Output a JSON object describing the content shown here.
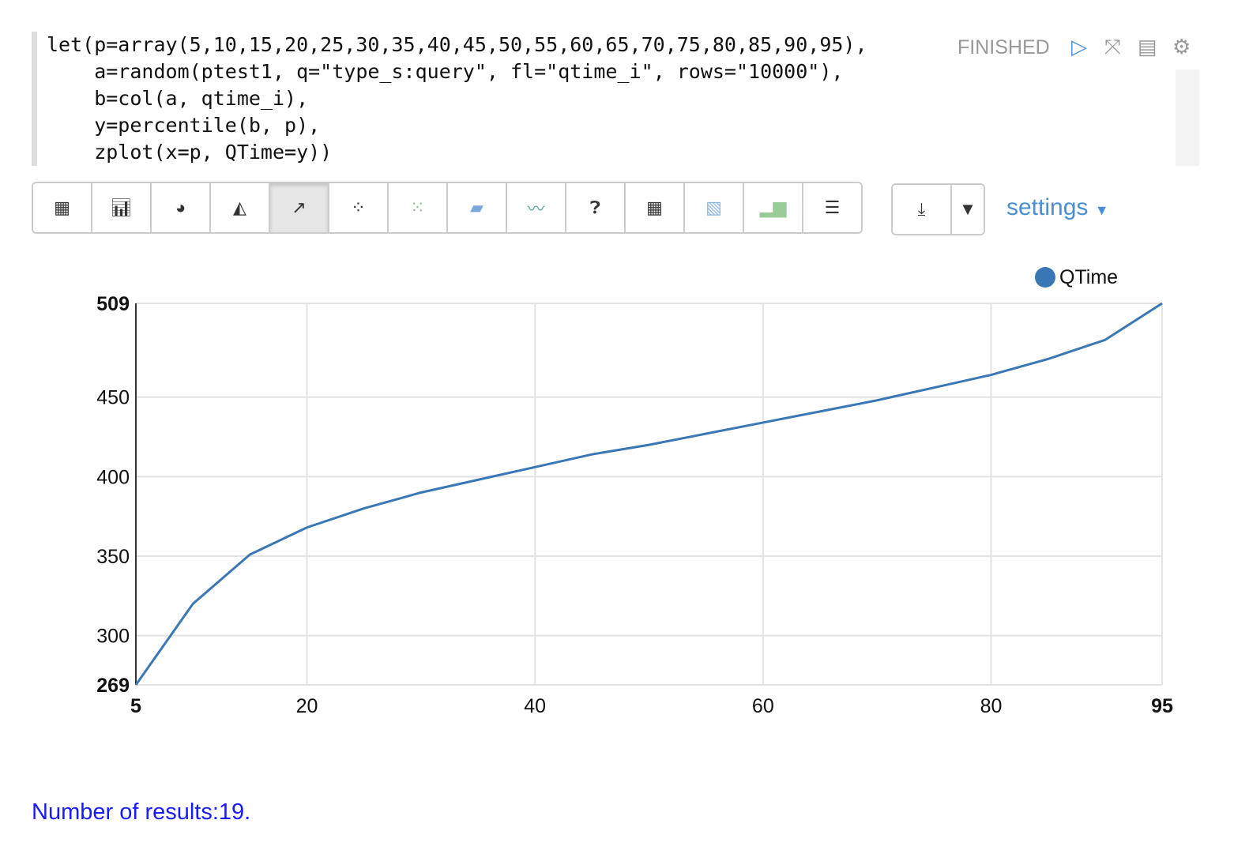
{
  "paragraph": {
    "code_lines": [
      "let(p=array(5,10,15,20,25,30,35,40,45,50,55,60,65,70,75,80,85,90,95),",
      "    a=random(ptest1, q=\"type_s:query\", fl=\"qtime_i\", rows=\"10000\"),",
      "    b=col(a, qtime_i),",
      "    y=percentile(b, p),",
      "    zplot(x=p, QTime=y))"
    ],
    "status": "FINISHED",
    "controls": [
      "run-icon",
      "collapse-icon",
      "book-icon",
      "gear-icon"
    ]
  },
  "toolbar": {
    "buttons": [
      "table-icon",
      "bar-chart-icon",
      "pie-chart-icon",
      "area-chart-icon",
      "line-chart-icon",
      "scatter-chart-icon",
      "bubble-chart-icon",
      "stacked-area-icon",
      "multi-line-icon",
      "help-icon",
      "grid-icon",
      "heatmap-icon",
      "column-chart-icon",
      "align-center-icon"
    ],
    "active": "line-chart-icon",
    "download": "download-icon",
    "settings_label": "settings"
  },
  "chart_data": {
    "type": "line",
    "x": [
      5,
      10,
      15,
      20,
      25,
      30,
      35,
      40,
      45,
      50,
      55,
      60,
      65,
      70,
      75,
      80,
      85,
      90,
      95
    ],
    "series": [
      {
        "name": "QTime",
        "color": "#3a78b5",
        "values": [
          269,
          320,
          351,
          368,
          380,
          390,
          398,
          406,
          414,
          420,
          427,
          434,
          441,
          448,
          456,
          464,
          474,
          486,
          509
        ]
      }
    ],
    "xlim": [
      5,
      95
    ],
    "ylim": [
      269,
      509
    ],
    "xticks": [
      "5",
      "20",
      "40",
      "60",
      "80",
      "95"
    ],
    "yticks": [
      "269",
      "300",
      "350",
      "400",
      "450",
      "509"
    ],
    "grid": true,
    "legend": "top-right"
  },
  "footer": {
    "results": "Number of results:19."
  }
}
